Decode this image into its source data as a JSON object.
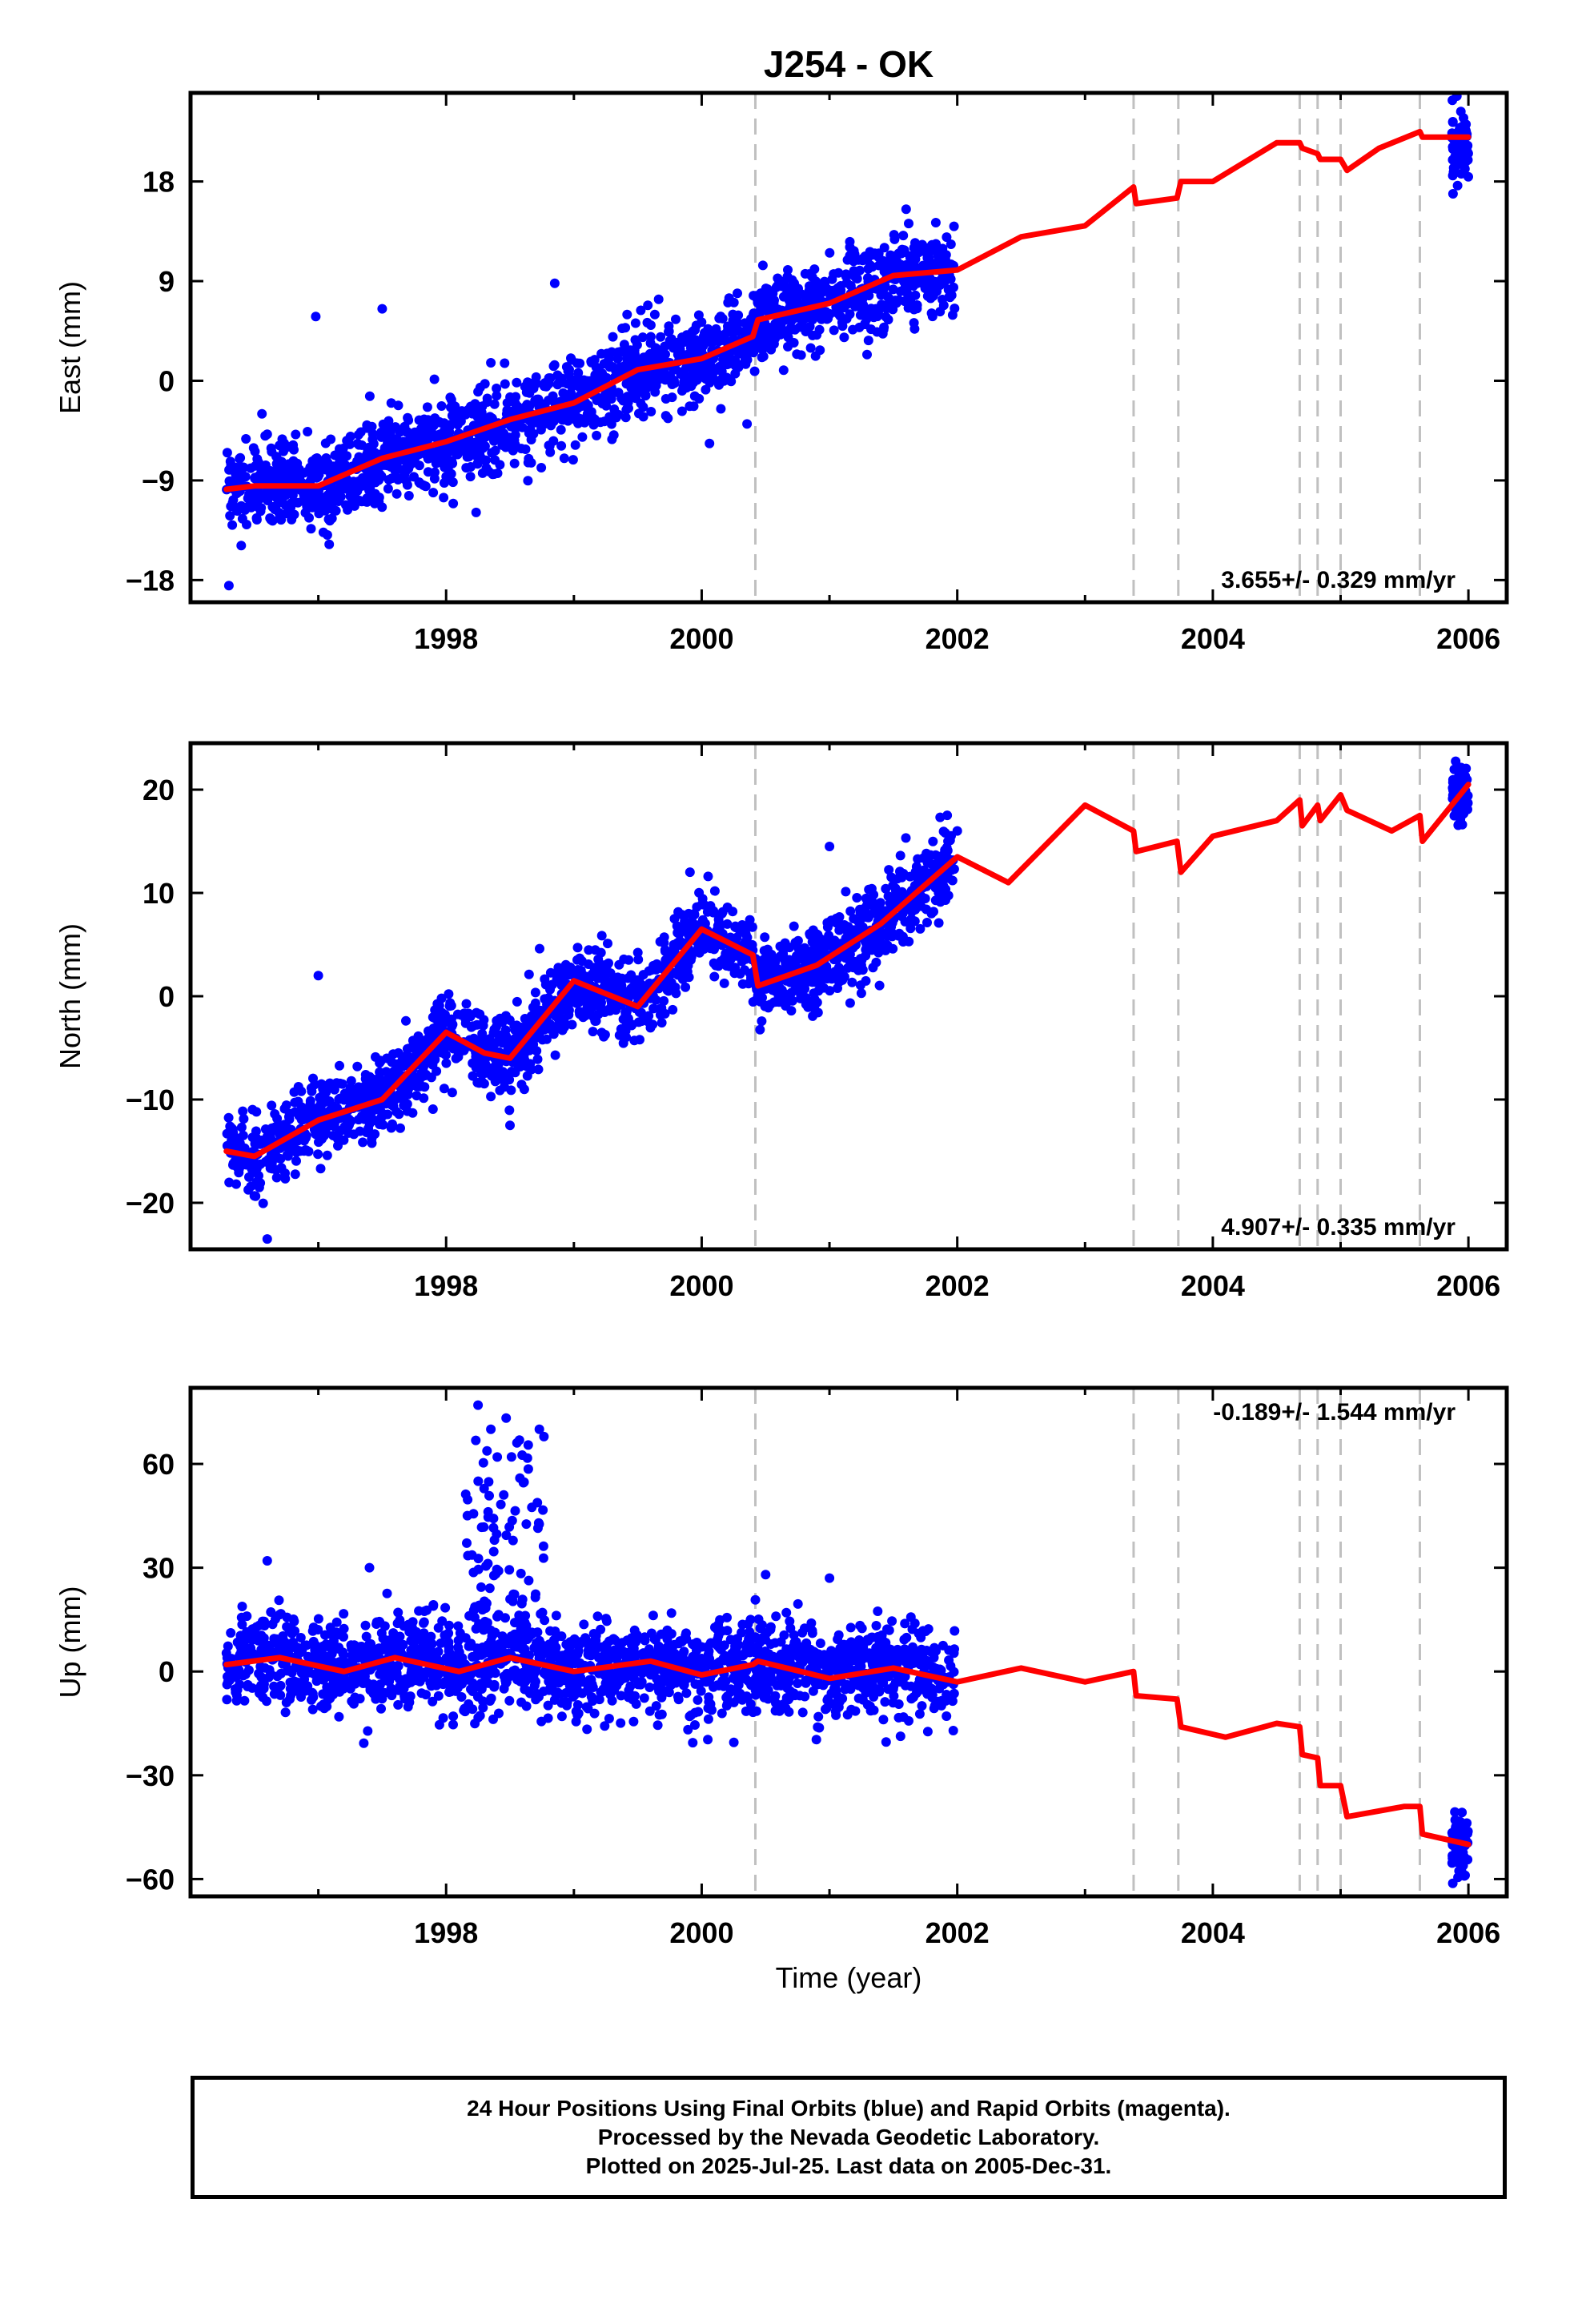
{
  "chart_data": {
    "title": "J254 - OK",
    "type": "scatter",
    "colors": {
      "data": "#0000ff",
      "model": "#ff0000",
      "breaks": "#c0c0c0"
    },
    "xlim": [
      1996.0,
      2006.3
    ],
    "xticks": [
      1998,
      2000,
      2002,
      2004,
      2006
    ],
    "xlabel": "Time (year)",
    "breaks": [
      2000.42,
      2003.38,
      2003.73,
      2004.68,
      2004.82,
      2005.0,
      2005.62
    ],
    "data_span": [
      1996.28,
      2001.98
    ],
    "late_span": [
      2005.87,
      2006.0
    ],
    "panels": [
      {
        "ylabel": "East (mm)",
        "ylim": [
          -20,
          26
        ],
        "yticks": [
          -18,
          -9,
          0,
          9,
          18
        ],
        "ytick_labels": [
          "−18",
          "−9",
          "0",
          "9",
          "18"
        ],
        "rate": "3.655+/- 0.329 mm/yr",
        "rate_position": "bottom-right",
        "scatter_sd": 1.9,
        "model_x": [
          1996.28,
          1996.5,
          1997.0,
          1997.5,
          1998.0,
          1998.5,
          1999.0,
          1999.5,
          2000.0,
          2000.4,
          2000.44,
          2001.0,
          2001.5,
          2002.0,
          2002.5,
          2003.0,
          2003.38,
          2003.4,
          2003.72,
          2003.75,
          2004.0,
          2004.5,
          2004.68,
          2004.7,
          2004.82,
          2004.84,
          2005.0,
          2005.05,
          2005.3,
          2005.62,
          2005.64,
          2006.0
        ],
        "model_y": [
          -9.8,
          -9.5,
          -9.5,
          -7.0,
          -5.5,
          -3.5,
          -2.0,
          1.0,
          2.0,
          4.0,
          5.5,
          7.0,
          9.5,
          10.0,
          13.0,
          14.0,
          17.5,
          16.0,
          16.5,
          18.0,
          18.0,
          21.5,
          21.5,
          21.0,
          20.5,
          20.0,
          20.0,
          19.0,
          21.0,
          22.5,
          22.0,
          22.0
        ],
        "late_mean": 21.5,
        "late_sd": 1.6,
        "outliers": [
          [
            1996.98,
            5.8
          ],
          [
            1998.85,
            8.8
          ],
          [
            1997.5,
            6.5
          ],
          [
            2001.6,
            15.5
          ],
          [
            1996.3,
            -18.5
          ]
        ]
      },
      {
        "ylabel": "North (mm)",
        "ylim": [
          -24.5,
          24.5
        ],
        "yticks": [
          -20,
          -10,
          0,
          10,
          20
        ],
        "ytick_labels": [
          "−20",
          "−10",
          "0",
          "10",
          "20"
        ],
        "rate": "4.907+/- 0.335 mm/yr",
        "rate_position": "bottom-right",
        "scatter_sd": 1.9,
        "model_x": [
          1996.28,
          1996.5,
          1997.0,
          1997.5,
          1998.0,
          1998.3,
          1998.5,
          1999.0,
          1999.5,
          2000.0,
          2000.4,
          2000.44,
          2000.9,
          2001.4,
          2002.0,
          2002.4,
          2003.0,
          2003.38,
          2003.4,
          2003.72,
          2003.75,
          2004.0,
          2004.5,
          2004.68,
          2004.7,
          2004.82,
          2004.84,
          2005.0,
          2005.05,
          2005.4,
          2005.62,
          2005.64,
          2006.0
        ],
        "model_y": [
          -15.0,
          -15.5,
          -12.0,
          -10.0,
          -3.5,
          -5.5,
          -6.0,
          1.5,
          -1.0,
          6.5,
          4.0,
          1.0,
          3.0,
          7.0,
          13.5,
          11.0,
          18.5,
          16.0,
          14.0,
          15.0,
          12.0,
          15.5,
          17.0,
          19.0,
          16.5,
          18.5,
          17.0,
          19.5,
          18.0,
          16.0,
          17.5,
          15.0,
          20.5
        ],
        "late_mean": 19.5,
        "late_sd": 1.6,
        "outliers": [
          [
            1997.0,
            2.0
          ],
          [
            1996.6,
            -23.5
          ],
          [
            1998.5,
            -12.5
          ],
          [
            2001.0,
            14.5
          ],
          [
            2002.0,
            16.0
          ]
        ]
      },
      {
        "ylabel": "Up (mm)",
        "ylim": [
          -65,
          82
        ],
        "yticks": [
          -60,
          -30,
          0,
          30,
          60
        ],
        "ytick_labels": [
          "−60",
          "−30",
          "0",
          "30",
          "60"
        ],
        "rate": "-0.189+/- 1.544 mm/yr",
        "rate_position": "top-right",
        "scatter_sd": 6.5,
        "model_x": [
          1996.28,
          1996.7,
          1997.2,
          1997.6,
          1998.1,
          1998.5,
          1999.0,
          1999.6,
          2000.0,
          2000.4,
          2000.44,
          2001.0,
          2001.5,
          2002.0,
          2002.5,
          2003.0,
          2003.38,
          2003.4,
          2003.72,
          2003.75,
          2004.1,
          2004.5,
          2004.68,
          2004.7,
          2004.82,
          2004.84,
          2005.0,
          2005.05,
          2005.5,
          2005.62,
          2005.64,
          2006.0
        ],
        "model_y": [
          2.0,
          4.0,
          0.0,
          4.0,
          0.0,
          4.0,
          0.0,
          3.0,
          -1.0,
          2.0,
          3.0,
          -2.0,
          1.0,
          -3.0,
          1.0,
          -3.0,
          0.0,
          -7.0,
          -8.0,
          -16.0,
          -19.0,
          -15.0,
          -16.0,
          -24.0,
          -25.0,
          -33.0,
          -33.0,
          -42.0,
          -39.0,
          -39.0,
          -47.0,
          -50.0
        ],
        "late_mean": -50.0,
        "late_sd": 4.5,
        "spike": {
          "x_range": [
            1998.15,
            1998.8
          ],
          "mean": 35,
          "sd": 16,
          "count": 90
        },
        "outliers": [
          [
            1998.25,
            77.0
          ],
          [
            1998.35,
            70.0
          ],
          [
            1998.73,
            70.0
          ],
          [
            1998.4,
            62.0
          ],
          [
            1996.6,
            32.0
          ],
          [
            1997.4,
            30.0
          ],
          [
            2000.5,
            28.0
          ],
          [
            2001.0,
            27.0
          ]
        ]
      }
    ]
  },
  "footer": {
    "line1": "24 Hour Positions Using Final Orbits (blue) and Rapid Orbits (magenta).",
    "line2": "Processed by the Nevada Geodetic Laboratory.",
    "line3": "Plotted on 2025-Jul-25. Last data on 2005-Dec-31."
  }
}
